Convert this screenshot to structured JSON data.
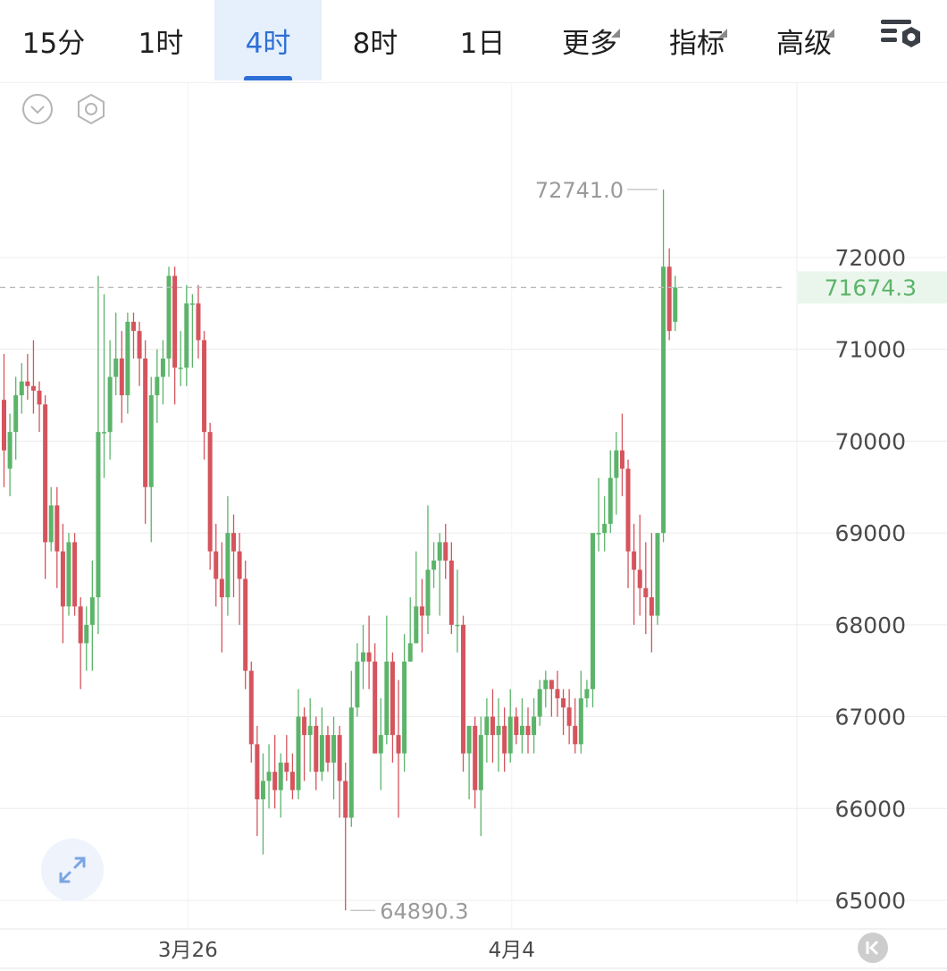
{
  "tabs": [
    {
      "label": "15分",
      "active": false,
      "more": false
    },
    {
      "label": "1时",
      "active": false,
      "more": false
    },
    {
      "label": "4时",
      "active": true,
      "more": false
    },
    {
      "label": "8时",
      "active": false,
      "more": false
    },
    {
      "label": "1日",
      "active": false,
      "more": false
    },
    {
      "label": "更多",
      "active": false,
      "more": true
    },
    {
      "label": "指标",
      "active": false,
      "more": true
    },
    {
      "label": "高级",
      "active": false,
      "more": true
    }
  ],
  "toolbar_icons": {
    "settings": "chart-settings-icon",
    "collapse": "chevron-down-circle-icon",
    "hexagon": "hexagon-settings-icon",
    "fullscreen": "expand-arrows-icon",
    "back": "scroll-to-latest-icon"
  },
  "colors": {
    "up": "#5cb46a",
    "down": "#d5545d",
    "accent": "#2d6fd6",
    "grid": "#ececec",
    "axis_text": "#4a4a4a",
    "label_text": "#9a9a9a"
  },
  "chart_data": {
    "type": "candlestick",
    "interval": "4时",
    "ylim": [
      64600,
      73500
    ],
    "y_ticks": [
      72000,
      71000,
      70000,
      69000,
      68000,
      67000,
      66000,
      65000
    ],
    "x_ticks": [
      {
        "label": "3月26",
        "index": 31
      },
      {
        "label": "4月4",
        "index": 86
      }
    ],
    "last_price": "71674.3",
    "last_price_value": 71674.3,
    "high_label": "72741.0",
    "low_label": "64890.3",
    "grid": true,
    "candles": [
      [
        70450,
        69900,
        70950,
        69500
      ],
      [
        69700,
        70100,
        70300,
        69400
      ],
      [
        70100,
        70500,
        70700,
        69800
      ],
      [
        70500,
        70650,
        70850,
        70300
      ],
      [
        70650,
        70600,
        70950,
        70450
      ],
      [
        70600,
        70550,
        71100,
        70300
      ],
      [
        70550,
        70400,
        70650,
        70100
      ],
      [
        70400,
        68900,
        70500,
        68500
      ],
      [
        68900,
        69300,
        69500,
        68800
      ],
      [
        69300,
        68800,
        69500,
        68400
      ],
      [
        68800,
        68200,
        69100,
        67800
      ],
      [
        68200,
        68900,
        69000,
        68100
      ],
      [
        68900,
        68200,
        69000,
        68100
      ],
      [
        68200,
        67800,
        68300,
        67300
      ],
      [
        67800,
        68000,
        68200,
        67500
      ],
      [
        68000,
        68300,
        68700,
        67500
      ],
      [
        68300,
        70100,
        71800,
        67900
      ],
      [
        70100,
        70100,
        71600,
        69600
      ],
      [
        70100,
        70700,
        71100,
        69800
      ],
      [
        70700,
        70900,
        71400,
        70500
      ],
      [
        70900,
        70500,
        71200,
        70200
      ],
      [
        70500,
        71300,
        71400,
        70300
      ],
      [
        71300,
        71200,
        71400,
        70900
      ],
      [
        71200,
        70900,
        71300,
        70600
      ],
      [
        70900,
        69500,
        71100,
        69100
      ],
      [
        69500,
        70500,
        70700,
        68900
      ],
      [
        70500,
        70700,
        71000,
        70200
      ],
      [
        70700,
        70900,
        71100,
        70400
      ],
      [
        70900,
        71800,
        71900,
        70700
      ],
      [
        71800,
        70800,
        71900,
        70400
      ],
      [
        70800,
        70800,
        71200,
        70600
      ],
      [
        70800,
        71500,
        71700,
        70600
      ],
      [
        71500,
        71500,
        71600,
        70800
      ],
      [
        71500,
        71100,
        71700,
        70900
      ],
      [
        71100,
        70100,
        71200,
        69800
      ],
      [
        70100,
        68800,
        70200,
        68600
      ],
      [
        68800,
        68500,
        69100,
        68200
      ],
      [
        68500,
        68300,
        68900,
        67700
      ],
      [
        68300,
        69000,
        69400,
        68100
      ],
      [
        69000,
        68800,
        69200,
        68300
      ],
      [
        68800,
        68500,
        69000,
        68000
      ],
      [
        68500,
        67500,
        68700,
        67300
      ],
      [
        67500,
        66700,
        67600,
        66500
      ],
      [
        66700,
        66100,
        66900,
        65700
      ],
      [
        66100,
        66300,
        66600,
        65500
      ],
      [
        66300,
        66400,
        66700,
        66000
      ],
      [
        66400,
        66200,
        66800,
        66000
      ],
      [
        66200,
        66500,
        66600,
        65900
      ],
      [
        66500,
        66400,
        66800,
        66300
      ],
      [
        66400,
        66200,
        66600,
        66100
      ],
      [
        66200,
        67000,
        67300,
        66100
      ],
      [
        67000,
        66800,
        67100,
        66300
      ],
      [
        66800,
        66900,
        67200,
        66400
      ],
      [
        66900,
        66400,
        67000,
        66200
      ],
      [
        66400,
        66800,
        67100,
        66300
      ],
      [
        66800,
        66500,
        66900,
        66400
      ],
      [
        66500,
        66800,
        67000,
        66100
      ],
      [
        66800,
        66300,
        66900,
        65900
      ],
      [
        66300,
        65900,
        66500,
        64890
      ],
      [
        65900,
        67100,
        67500,
        65800
      ],
      [
        67100,
        67600,
        67800,
        67000
      ],
      [
        67600,
        67700,
        68000,
        67300
      ],
      [
        67700,
        67600,
        68100,
        67300
      ],
      [
        67600,
        66600,
        67800,
        66600
      ],
      [
        66600,
        66800,
        67200,
        66200
      ],
      [
        66800,
        67600,
        68100,
        66700
      ],
      [
        67600,
        66800,
        67700,
        66500
      ],
      [
        66800,
        66600,
        67400,
        65900
      ],
      [
        66600,
        67600,
        67900,
        66400
      ],
      [
        67600,
        67800,
        68300,
        67600
      ],
      [
        67800,
        68200,
        68800,
        67800
      ],
      [
        68200,
        68100,
        68500,
        67700
      ],
      [
        68100,
        68600,
        69300,
        67900
      ],
      [
        68600,
        68700,
        68900,
        68400
      ],
      [
        68700,
        68900,
        69000,
        68100
      ],
      [
        68900,
        68700,
        69100,
        68500
      ],
      [
        68700,
        68000,
        68900,
        67900
      ],
      [
        68000,
        68000,
        68600,
        67700
      ],
      [
        68000,
        66600,
        68100,
        66400
      ],
      [
        66600,
        66900,
        66900,
        66100
      ],
      [
        66900,
        66200,
        67000,
        66000
      ],
      [
        66200,
        66800,
        67000,
        65700
      ],
      [
        66800,
        67000,
        67200,
        66500
      ],
      [
        67000,
        66800,
        67300,
        66500
      ],
      [
        66800,
        66900,
        67200,
        66400
      ],
      [
        66900,
        66600,
        67100,
        66400
      ],
      [
        66600,
        67000,
        67300,
        66500
      ],
      [
        67000,
        66800,
        67100,
        66700
      ],
      [
        66800,
        66900,
        67200,
        66600
      ],
      [
        66900,
        66800,
        67100,
        66600
      ],
      [
        66800,
        67000,
        67200,
        66600
      ],
      [
        67000,
        67300,
        67400,
        66900
      ],
      [
        67300,
        67400,
        67500,
        67100
      ],
      [
        67400,
        67300,
        67400,
        67000
      ],
      [
        67300,
        67200,
        67500,
        67000
      ],
      [
        67200,
        67100,
        67300,
        66800
      ],
      [
        67100,
        66900,
        67300,
        66700
      ],
      [
        66900,
        66700,
        67200,
        66600
      ],
      [
        66700,
        67200,
        67500,
        66600
      ],
      [
        67200,
        67300,
        67400,
        67100
      ],
      [
        67300,
        69000,
        69000,
        67100
      ],
      [
        69000,
        69000,
        69600,
        68800
      ],
      [
        69000,
        69100,
        69400,
        68800
      ],
      [
        69100,
        69600,
        69900,
        69000
      ],
      [
        69600,
        69900,
        70100,
        69200
      ],
      [
        69900,
        69700,
        70300,
        69400
      ],
      [
        69700,
        68800,
        69800,
        68400
      ],
      [
        68800,
        68600,
        69100,
        68000
      ],
      [
        68600,
        68400,
        69200,
        68100
      ],
      [
        68400,
        68300,
        68900,
        67900
      ],
      [
        68300,
        68100,
        69000,
        67700
      ],
      [
        68100,
        69000,
        69000,
        68000
      ],
      [
        69000,
        71900,
        72741,
        68900
      ],
      [
        71900,
        71200,
        72100,
        71100
      ],
      [
        71300,
        71674,
        71800,
        71200
      ]
    ]
  }
}
